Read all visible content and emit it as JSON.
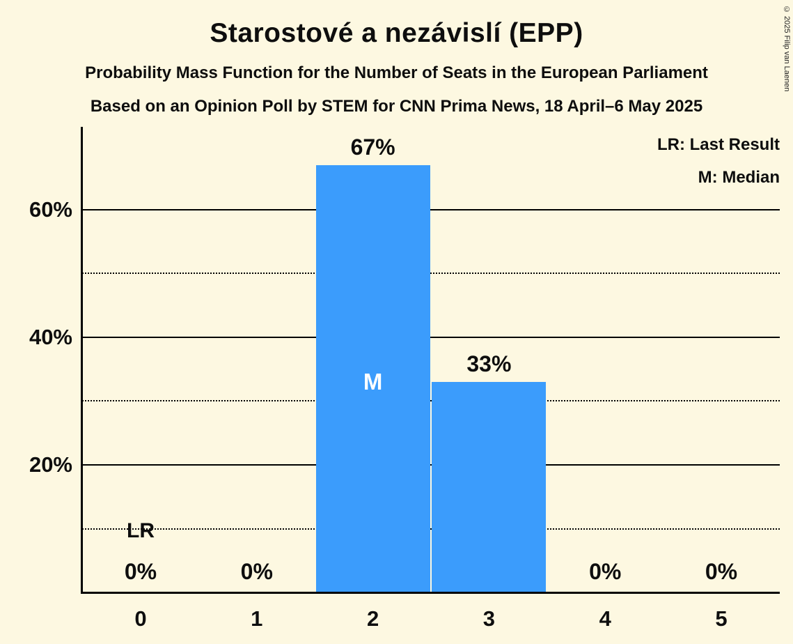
{
  "header": {
    "title": "Starostové a nezávislí (EPP)",
    "subtitle_line1": "Probability Mass Function for the Number of Seats in the European Parliament",
    "subtitle_line2": "Based on an Opinion Poll by STEM for CNN Prima News, 18 April–6 May 2025"
  },
  "copyright": "© 2025 Filip van Laenen",
  "legend": {
    "last_result": "LR: Last Result",
    "median": "M: Median"
  },
  "chart_data": {
    "type": "bar",
    "title": "Starostové a nezávislí (EPP)",
    "categories": [
      "0",
      "1",
      "2",
      "3",
      "4",
      "5"
    ],
    "values": [
      0,
      0,
      67,
      33,
      0,
      0
    ],
    "bar_labels": [
      "0%",
      "0%",
      "67%",
      "33%",
      "0%",
      "0%"
    ],
    "median_index": 2,
    "median_marker": "M",
    "last_result_index": 0,
    "last_result_marker": "LR",
    "ylim": [
      0,
      73
    ],
    "yticks": [
      20,
      40,
      60
    ],
    "ytick_labels": [
      "20%",
      "40%",
      "60%"
    ],
    "solid_gridlines": [
      20,
      40,
      60
    ],
    "dotted_gridlines": [
      10,
      30,
      50
    ],
    "grid": "horizontal",
    "legend_position": "top-right",
    "bar_color": "#3b9cfc",
    "background_color": "#fdf8e1"
  }
}
